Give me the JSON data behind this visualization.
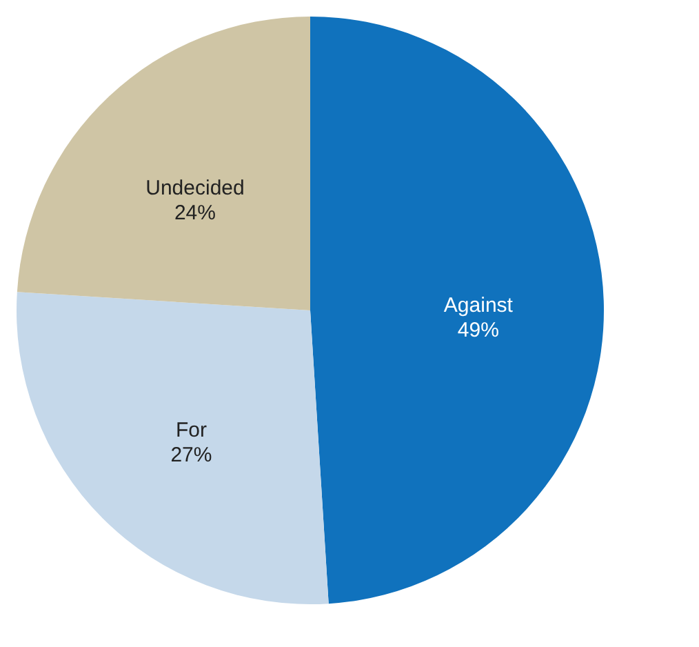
{
  "chart_data": {
    "type": "pie",
    "categories": [
      "Against",
      "For",
      "Undecided"
    ],
    "values": [
      49,
      27,
      24
    ],
    "colors": [
      "#1072bd",
      "#c5d8ea",
      "#cfc5a5"
    ],
    "value_labels": [
      "49%",
      "27%",
      "24%"
    ],
    "legend": false
  }
}
